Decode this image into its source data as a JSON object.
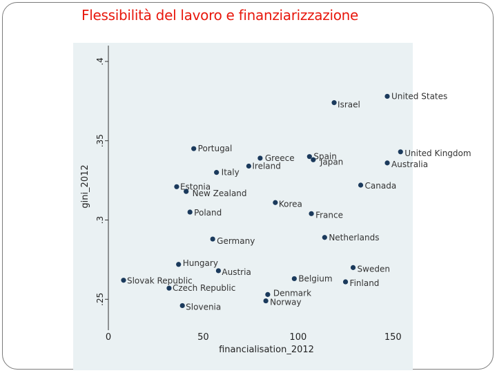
{
  "slide": {
    "title": "Flessibilità del lavoro e finanziarizzazione"
  },
  "chart_data": {
    "type": "scatter",
    "xlabel": "financialisation_2012",
    "ylabel": "gini_2012",
    "xlim": [
      0,
      155
    ],
    "ylim": [
      0.234,
      0.41
    ],
    "x_ticks": [
      {
        "value": 0,
        "label": "0"
      },
      {
        "value": 50,
        "label": "50"
      },
      {
        "value": 100,
        "label": "100"
      },
      {
        "value": 150,
        "label": "150"
      }
    ],
    "y_ticks": [
      {
        "value": 0.25,
        "label": ".25"
      },
      {
        "value": 0.3,
        "label": ".3"
      },
      {
        "value": 0.35,
        "label": ".35"
      },
      {
        "value": 0.4,
        "label": ".4"
      }
    ],
    "grid": false,
    "legend": "none",
    "marker_color": "#1b3a5c",
    "points": [
      {
        "label": "United States",
        "x": 147,
        "y": 0.378
      },
      {
        "label": "Israel",
        "x": 119,
        "y": 0.374
      },
      {
        "label": "Portugal",
        "x": 45,
        "y": 0.345
      },
      {
        "label": "United Kingdom",
        "x": 154,
        "y": 0.343
      },
      {
        "label": "Spain",
        "x": 106,
        "y": 0.34
      },
      {
        "label": "Japan",
        "x": 108,
        "y": 0.338
      },
      {
        "label": "Greece",
        "x": 80,
        "y": 0.339
      },
      {
        "label": "Australia",
        "x": 147,
        "y": 0.336
      },
      {
        "label": "Ireland",
        "x": 74,
        "y": 0.334
      },
      {
        "label": "Italy",
        "x": 57,
        "y": 0.33
      },
      {
        "label": "Canada",
        "x": 133,
        "y": 0.322
      },
      {
        "label": "Estonia",
        "x": 36,
        "y": 0.321
      },
      {
        "label": "New Zealand",
        "x": 41,
        "y": 0.318
      },
      {
        "label": "Korea",
        "x": 88,
        "y": 0.311
      },
      {
        "label": "Poland",
        "x": 43,
        "y": 0.305
      },
      {
        "label": "France",
        "x": 107,
        "y": 0.304
      },
      {
        "label": "Netherlands",
        "x": 114,
        "y": 0.289
      },
      {
        "label": "Germany",
        "x": 55,
        "y": 0.288
      },
      {
        "label": "Hungary",
        "x": 37,
        "y": 0.272
      },
      {
        "label": "Sweden",
        "x": 129,
        "y": 0.27
      },
      {
        "label": "Austria",
        "x": 58,
        "y": 0.268
      },
      {
        "label": "Slovak Republic",
        "x": 8,
        "y": 0.262
      },
      {
        "label": "Belgium",
        "x": 98,
        "y": 0.263
      },
      {
        "label": "Finland",
        "x": 125,
        "y": 0.261
      },
      {
        "label": "Czech Republic",
        "x": 32,
        "y": 0.257
      },
      {
        "label": "Denmark",
        "x": 84,
        "y": 0.253
      },
      {
        "label": "Norway",
        "x": 83,
        "y": 0.249
      },
      {
        "label": "Slovenia",
        "x": 39,
        "y": 0.246
      }
    ]
  }
}
